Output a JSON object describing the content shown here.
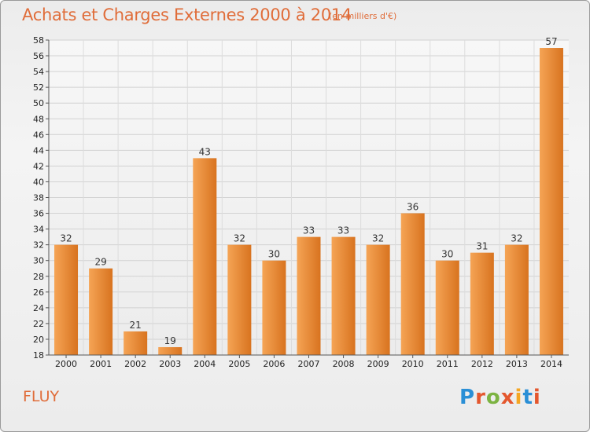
{
  "header": {
    "title": "Achats et Charges Externes 2000 à 2014",
    "subtitle": "(en milliers d'€)"
  },
  "footer": {
    "place": "FLUY",
    "logo_text": "Proxiti",
    "logo_colors": [
      "#2a8fd6",
      "#e4572e",
      "#7cb342",
      "#e4572e",
      "#f5a623",
      "#2a8fd6",
      "#e4572e"
    ]
  },
  "chart_data": {
    "type": "bar",
    "title": "Achats et Charges Externes 2000 à 2014",
    "categories": [
      "2000",
      "2001",
      "2002",
      "2003",
      "2004",
      "2005",
      "2006",
      "2007",
      "2008",
      "2009",
      "2010",
      "2011",
      "2012",
      "2013",
      "2014"
    ],
    "values": [
      32,
      29,
      21,
      19,
      43,
      32,
      30,
      33,
      33,
      32,
      36,
      30,
      31,
      32,
      57
    ],
    "ylim": [
      18,
      58
    ],
    "yticks": [
      18,
      20,
      22,
      24,
      26,
      28,
      30,
      32,
      34,
      36,
      38,
      40,
      42,
      44,
      46,
      48,
      50,
      52,
      54,
      56,
      58
    ],
    "grid": true,
    "bar_color_top": "#f5a455",
    "bar_color_bottom": "#d8731f"
  }
}
